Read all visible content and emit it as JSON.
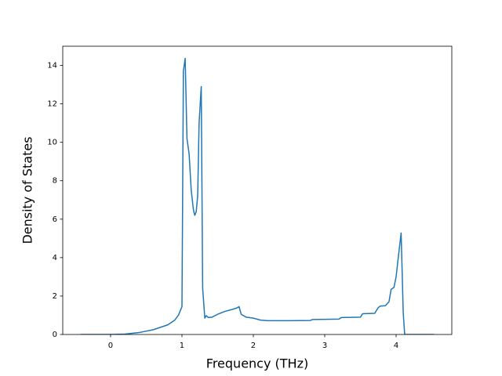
{
  "chart_data": {
    "type": "line",
    "xlabel": "Frequency (THz)",
    "ylabel": "Density of States",
    "x": [
      -0.42,
      0,
      0.2,
      0.4,
      0.6,
      0.8,
      0.9,
      0.95,
      1.0,
      1.02,
      1.045,
      1.07,
      1.1,
      1.13,
      1.16,
      1.18,
      1.2,
      1.22,
      1.24,
      1.27,
      1.29,
      1.32,
      1.34,
      1.37,
      1.42,
      1.5,
      1.6,
      1.7,
      1.77,
      1.8,
      1.83,
      1.9,
      2.0,
      2.1,
      2.2,
      2.5,
      2.8,
      2.83,
      3.2,
      3.23,
      3.5,
      3.53,
      3.7,
      3.75,
      3.78,
      3.85,
      3.9,
      3.93,
      3.97,
      4.0,
      4.03,
      4.07,
      4.1,
      4.12,
      4.53
    ],
    "values": [
      0,
      0,
      0.02,
      0.1,
      0.25,
      0.5,
      0.75,
      1.0,
      1.45,
      13.7,
      14.37,
      10.2,
      9.4,
      7.5,
      6.5,
      6.2,
      6.4,
      7.2,
      11.0,
      12.9,
      2.4,
      0.85,
      0.98,
      0.88,
      0.9,
      1.05,
      1.2,
      1.3,
      1.38,
      1.45,
      1.05,
      0.9,
      0.85,
      0.75,
      0.72,
      0.72,
      0.73,
      0.78,
      0.8,
      0.88,
      0.9,
      1.08,
      1.1,
      1.4,
      1.48,
      1.5,
      1.7,
      2.35,
      2.45,
      3.0,
      4.0,
      5.28,
      1.1,
      0,
      0
    ],
    "color": "#1f77b4",
    "xlim": [
      -0.67,
      4.78
    ],
    "xticks": [
      0,
      1,
      2,
      3,
      4
    ],
    "ylim": [
      0,
      15.0
    ],
    "yticks": [
      0,
      2,
      4,
      6,
      8,
      10,
      12,
      14
    ]
  }
}
